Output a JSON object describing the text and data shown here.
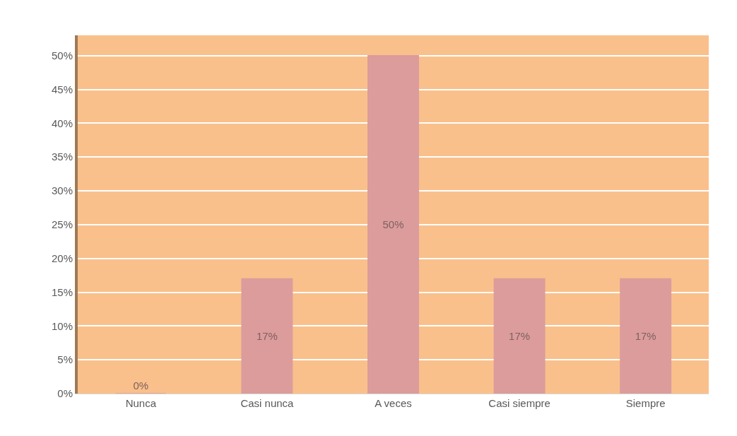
{
  "chart_data": {
    "type": "bar",
    "categories": [
      "Nunca",
      "Casi nunca",
      "A veces",
      "Casi siempre",
      "Siempre"
    ],
    "values": [
      0,
      17,
      50,
      17,
      17
    ],
    "value_labels": [
      "0%",
      "17%",
      "50%",
      "17%",
      "17%"
    ],
    "color": "#dc9c9c",
    "ylim": [
      0,
      53
    ],
    "yticks": [
      {
        "value": 0,
        "label": "0%"
      },
      {
        "value": 5,
        "label": "5%"
      },
      {
        "value": 10,
        "label": "10%"
      },
      {
        "value": 15,
        "label": "15%"
      },
      {
        "value": 20,
        "label": "20%"
      },
      {
        "value": 25,
        "label": "25%"
      },
      {
        "value": 30,
        "label": "30%"
      },
      {
        "value": 35,
        "label": "35%"
      },
      {
        "value": 40,
        "label": "40%"
      },
      {
        "value": 45,
        "label": "45%"
      },
      {
        "value": 50,
        "label": "50%"
      }
    ],
    "grid": "y",
    "legend": false
  }
}
